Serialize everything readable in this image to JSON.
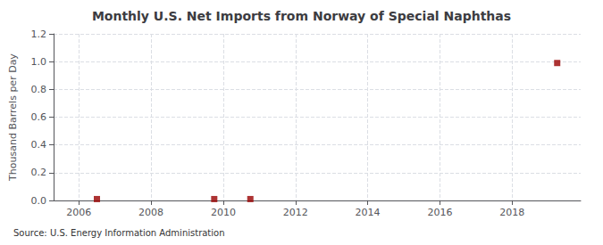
{
  "chart_data": {
    "type": "scatter",
    "title": "Monthly U.S. Net Imports from Norway of Special Naphthas",
    "ylabel": "Thousand Barrels per Day",
    "annotation": "Source: U.S. Energy Information Administration",
    "x": [
      2006.5,
      2009.75,
      2010.75,
      2019.25
    ],
    "values": [
      0.01,
      0.01,
      0.01,
      0.99
    ],
    "color": "#990000",
    "marker": "square",
    "xlim": [
      2005.3,
      2019.9
    ],
    "ylim": [
      0.0,
      1.2
    ],
    "xticks": [
      2006,
      2008,
      2010,
      2012,
      2014,
      2016,
      2018
    ],
    "yticks": [
      {
        "value": 0,
        "label": "0.0"
      },
      0.2,
      0.4,
      0.6,
      0.8,
      {
        "value": 1,
        "label": "1.0"
      },
      1.2
    ],
    "grid": true
  }
}
